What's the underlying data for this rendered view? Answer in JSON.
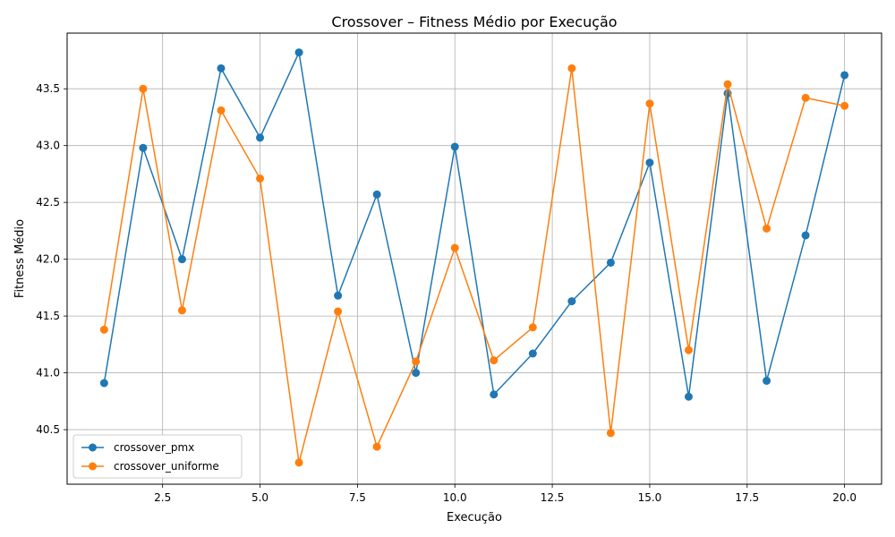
{
  "chart_data": {
    "type": "line",
    "title": "Crossover – Fitness Médio por Execução",
    "xlabel": "Execução",
    "ylabel": "Fitness Médio",
    "xlim": [
      0.05,
      20.95
    ],
    "ylim": [
      40.02,
      43.99
    ],
    "xticks": [
      2.5,
      5.0,
      7.5,
      10.0,
      12.5,
      15.0,
      17.5,
      20.0
    ],
    "xtick_labels": [
      "2.5",
      "5.0",
      "7.5",
      "10.0",
      "12.5",
      "15.0",
      "17.5",
      "20.0"
    ],
    "yticks": [
      40.5,
      41.0,
      41.5,
      42.0,
      42.5,
      43.0,
      43.5
    ],
    "ytick_labels": [
      "40.5",
      "41.0",
      "41.5",
      "42.0",
      "42.5",
      "43.0",
      "43.5"
    ],
    "grid": true,
    "legend_position": "lower-left",
    "x": [
      1,
      2,
      3,
      4,
      5,
      6,
      7,
      8,
      9,
      10,
      11,
      12,
      13,
      14,
      15,
      16,
      17,
      18,
      19,
      20
    ],
    "series": [
      {
        "name": "crossover_pmx",
        "color": "#1f77b4",
        "values": [
          40.91,
          42.98,
          42.0,
          43.68,
          43.07,
          43.82,
          41.68,
          42.57,
          41.0,
          42.99,
          40.81,
          41.17,
          41.63,
          41.97,
          42.85,
          40.79,
          43.46,
          40.93,
          42.21,
          43.62
        ]
      },
      {
        "name": "crossover_uniforme",
        "color": "#ff7f0e",
        "values": [
          41.38,
          43.5,
          41.55,
          43.31,
          42.71,
          40.21,
          41.54,
          40.35,
          41.1,
          42.1,
          41.11,
          41.4,
          43.68,
          40.47,
          43.37,
          41.2,
          43.54,
          42.27,
          43.42,
          43.35
        ]
      }
    ]
  }
}
